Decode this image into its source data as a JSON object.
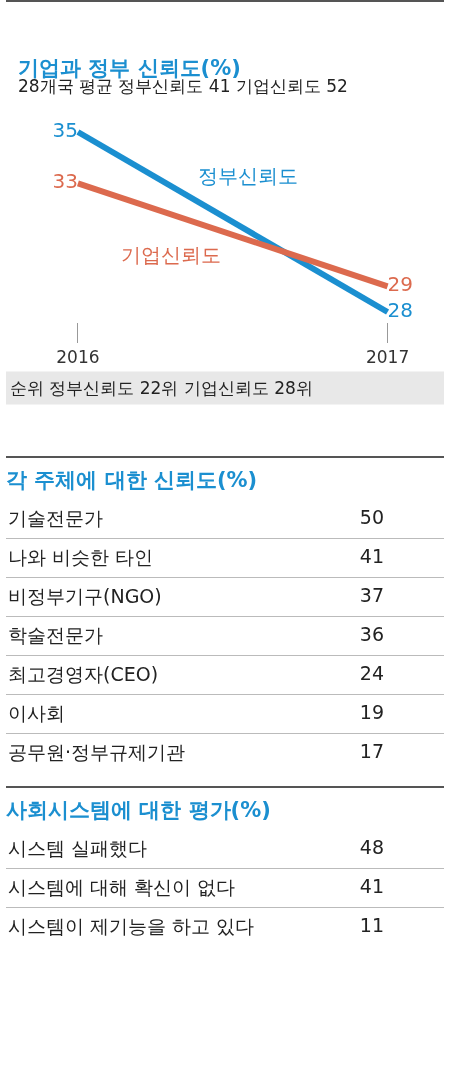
{
  "chart_data": [
    {
      "type": "line",
      "title": "기업과 정부 신뢰도(%)",
      "subtitle": "28개국 평균 정부신뢰도 41 기업신뢰도 52",
      "categories": [
        "2016",
        "2017"
      ],
      "series": [
        {
          "name": "정부신뢰도",
          "color": "#1b8fd0",
          "values": [
            35,
            28
          ]
        },
        {
          "name": "기업신뢰도",
          "color": "#dc6a4e",
          "values": [
            33,
            29
          ]
        }
      ],
      "tick_labels": "x",
      "grid": false,
      "legend": false,
      "marker": "none",
      "line_style": "solid",
      "data_labels": true,
      "annotations": [
        "순위 정부신뢰도 22위 기업신뢰도 28위"
      ]
    },
    {
      "type": "other",
      "title": "각 주체에 대한 신뢰도(%)",
      "categories": [
        "기술전문가",
        "나와 비슷한 타인",
        "비정부기구(NGO)",
        "학술전문가",
        "최고경영자(CEO)",
        "이사회",
        "공무원·정부규제기관"
      ],
      "values": [
        50,
        41,
        37,
        36,
        24,
        19,
        17
      ],
      "data_labels": true
    },
    {
      "type": "other",
      "title": "사회시스템에 대한 평가(%)",
      "categories": [
        "시스템 실패했다",
        "시스템에 대해 확신이 없다",
        "시스템이 제기능을 하고 있다"
      ],
      "values": [
        48,
        41,
        11
      ],
      "data_labels": true
    }
  ]
}
